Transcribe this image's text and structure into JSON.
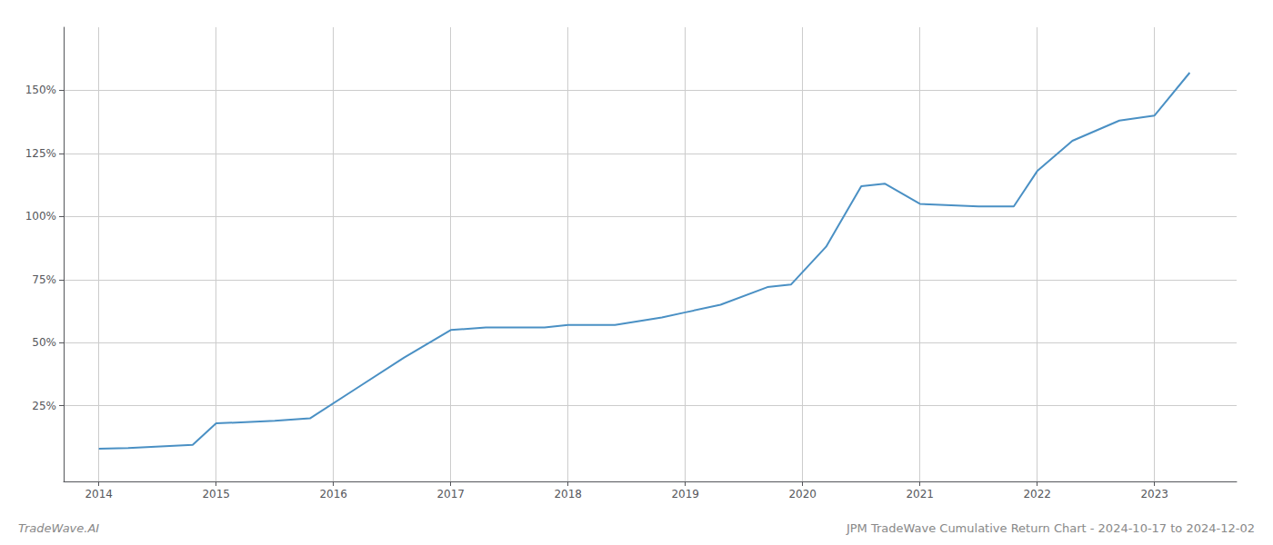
{
  "chart_data": {
    "type": "line",
    "x": [
      2014.0,
      2014.25,
      2014.8,
      2015.0,
      2015.5,
      2015.8,
      2016.2,
      2016.6,
      2017.0,
      2017.3,
      2017.8,
      2018.0,
      2018.4,
      2018.8,
      2019.0,
      2019.3,
      2019.7,
      2019.9,
      2020.2,
      2020.5,
      2020.7,
      2021.0,
      2021.5,
      2021.8,
      2022.0,
      2022.3,
      2022.7,
      2023.0,
      2023.3
    ],
    "values": [
      8,
      8.2,
      9.5,
      18,
      19,
      20,
      32,
      44,
      55,
      56,
      56,
      57,
      57,
      60,
      62,
      65,
      72,
      73,
      88,
      112,
      113,
      105,
      104,
      104,
      118,
      130,
      138,
      140,
      157
    ],
    "color": "#4a90c4",
    "xlim": [
      2013.7,
      2023.7
    ],
    "ylim": [
      -5,
      175
    ],
    "xticks": [
      2014,
      2015,
      2016,
      2017,
      2018,
      2019,
      2020,
      2021,
      2022,
      2023
    ],
    "yticks": [
      {
        "value": 25,
        "label": "25%"
      },
      {
        "value": 50,
        "label": "50%"
      },
      {
        "value": 75,
        "label": "75%"
      },
      {
        "value": 100,
        "label": "100%"
      },
      {
        "value": 125,
        "label": "125%"
      },
      {
        "value": 150,
        "label": "150%"
      }
    ],
    "grid": true,
    "annotations": [
      "TradeWave.AI",
      "JPM TradeWave Cumulative Return Chart - 2024-10-17 to 2024-12-02"
    ]
  }
}
